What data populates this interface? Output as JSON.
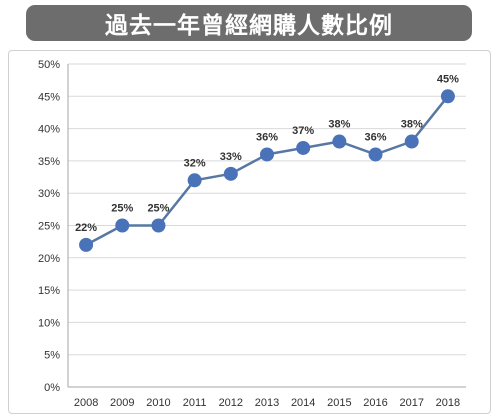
{
  "title": "過去一年曾經網購人數比例",
  "colors": {
    "title_bg": "#6d6d6d",
    "title_text": "#ffffff",
    "line": "#5778a3",
    "marker": "#4a72b8",
    "grid": "#d9d9d9"
  },
  "chart_data": {
    "type": "line",
    "title": "過去一年曾經網購人數比例",
    "xlabel": "",
    "ylabel": "",
    "categories": [
      "2008",
      "2009",
      "2010",
      "2011",
      "2012",
      "2013",
      "2014",
      "2015",
      "2016",
      "2017",
      "2018"
    ],
    "values": [
      22,
      25,
      25,
      32,
      33,
      36,
      37,
      38,
      36,
      38,
      45
    ],
    "value_labels": [
      "22%",
      "25%",
      "25%",
      "32%",
      "33%",
      "36%",
      "37%",
      "38%",
      "36%",
      "38%",
      "45%"
    ],
    "ylim": [
      0,
      50
    ],
    "yticks": [
      0,
      5,
      10,
      15,
      20,
      25,
      30,
      35,
      40,
      45,
      50
    ],
    "ytick_labels": [
      "0%",
      "5%",
      "10%",
      "15%",
      "20%",
      "25%",
      "30%",
      "35%",
      "40%",
      "45%",
      "50%"
    ],
    "grid": true,
    "legend": "none",
    "markers": true
  }
}
